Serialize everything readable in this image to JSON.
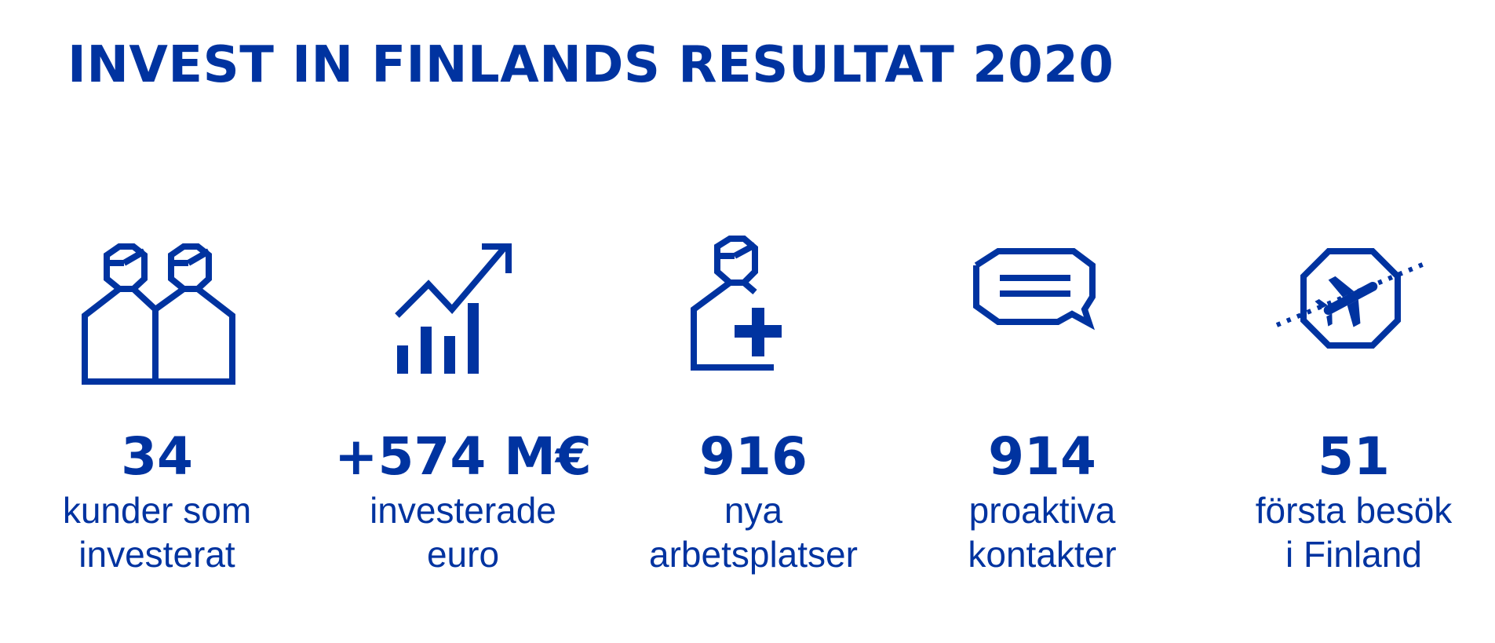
{
  "title": "INVEST IN FINLANDS RESULTAT 2020",
  "accent_color": "#0033a0",
  "stats": [
    {
      "icon": "people-icon",
      "value": "34",
      "label_line1": "kunder som",
      "label_line2": "investerat"
    },
    {
      "icon": "growth-chart-icon",
      "value": "+574 M€",
      "label_line1": "investerade",
      "label_line2": "euro"
    },
    {
      "icon": "add-person-icon",
      "value": "916",
      "label_line1": "nya",
      "label_line2": "arbetsplatser"
    },
    {
      "icon": "speech-bubble-icon",
      "value": "914",
      "label_line1": "proaktiva",
      "label_line2": "kontakter"
    },
    {
      "icon": "airplane-orbit-icon",
      "value": "51",
      "label_line1": "första besök",
      "label_line2": "i Finland"
    }
  ]
}
